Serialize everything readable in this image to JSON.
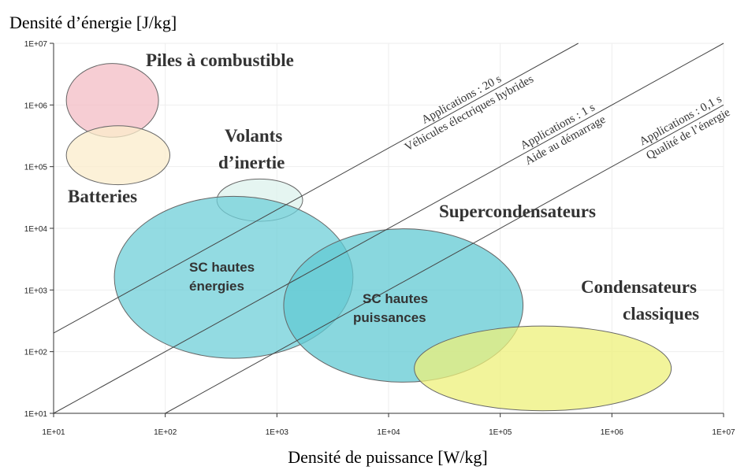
{
  "chart_data": {
    "type": "ragone",
    "xlabel": "Densité de puissance [W/kg]",
    "ylabel": "Densité d’énergie [J/kg]",
    "log_x": true,
    "log_y": true,
    "grid": true,
    "xlim": [
      10,
      10000000
    ],
    "ylim": [
      10,
      10000000
    ],
    "xticks": [
      {
        "value": 10,
        "label": "1E+01"
      },
      {
        "value": 100,
        "label": "1E+02"
      },
      {
        "value": 1000,
        "label": "1E+03"
      },
      {
        "value": 10000,
        "label": "1E+04"
      },
      {
        "value": 100000,
        "label": "1E+05"
      },
      {
        "value": 1000000,
        "label": "1E+06"
      },
      {
        "value": 10000000,
        "label": "1E+07"
      }
    ],
    "yticks": [
      {
        "value": 10,
        "label": "1E+01"
      },
      {
        "value": 100,
        "label": "1E+02"
      },
      {
        "value": 1000,
        "label": "1E+03"
      },
      {
        "value": 10000,
        "label": "1E+04"
      },
      {
        "value": 100000,
        "label": "1E+05"
      },
      {
        "value": 1000000,
        "label": "1E+06"
      },
      {
        "value": 10000000,
        "label": "1E+07"
      }
    ],
    "regions": [
      {
        "name": "Piles à combustible",
        "color": "#f3bcc4",
        "x": [
          13,
          87
        ],
        "y": [
          4700000,
          300000
        ]
      },
      {
        "name": "Batteries",
        "color": "#fbeccb",
        "x": [
          13,
          110
        ],
        "y": [
          460000,
          51000
        ]
      },
      {
        "name": "Volants d’inertie",
        "color": "#dcf1ec",
        "x": [
          290,
          1700
        ],
        "y": [
          63000,
          13000
        ]
      },
      {
        "name": "SC hautes énergies",
        "color": "#6fcfd8",
        "x": [
          35,
          4800
        ],
        "y": [
          33000,
          78
        ]
      },
      {
        "name": "SC hautes puissances",
        "color": "#62c9d3",
        "x": [
          1150,
          160000
        ],
        "y": [
          9800,
          32
        ]
      },
      {
        "name": "Condensateurs classiques",
        "color": "#eef07a",
        "x": [
          17000,
          3400000
        ],
        "y": [
          260,
          11
        ]
      }
    ],
    "group_label": "Supercondensateurs",
    "lines": [
      {
        "label": "Applications : 20 s",
        "sublabel": "Véhicules électriques hybrides",
        "t": 20
      },
      {
        "label": "Applications : 1 s",
        "sublabel": "Aide au démarrage",
        "t": 1
      },
      {
        "label": "Applications : 0,1 s",
        "sublabel": "Qualité de l’énergie",
        "t": 0.1
      }
    ]
  }
}
